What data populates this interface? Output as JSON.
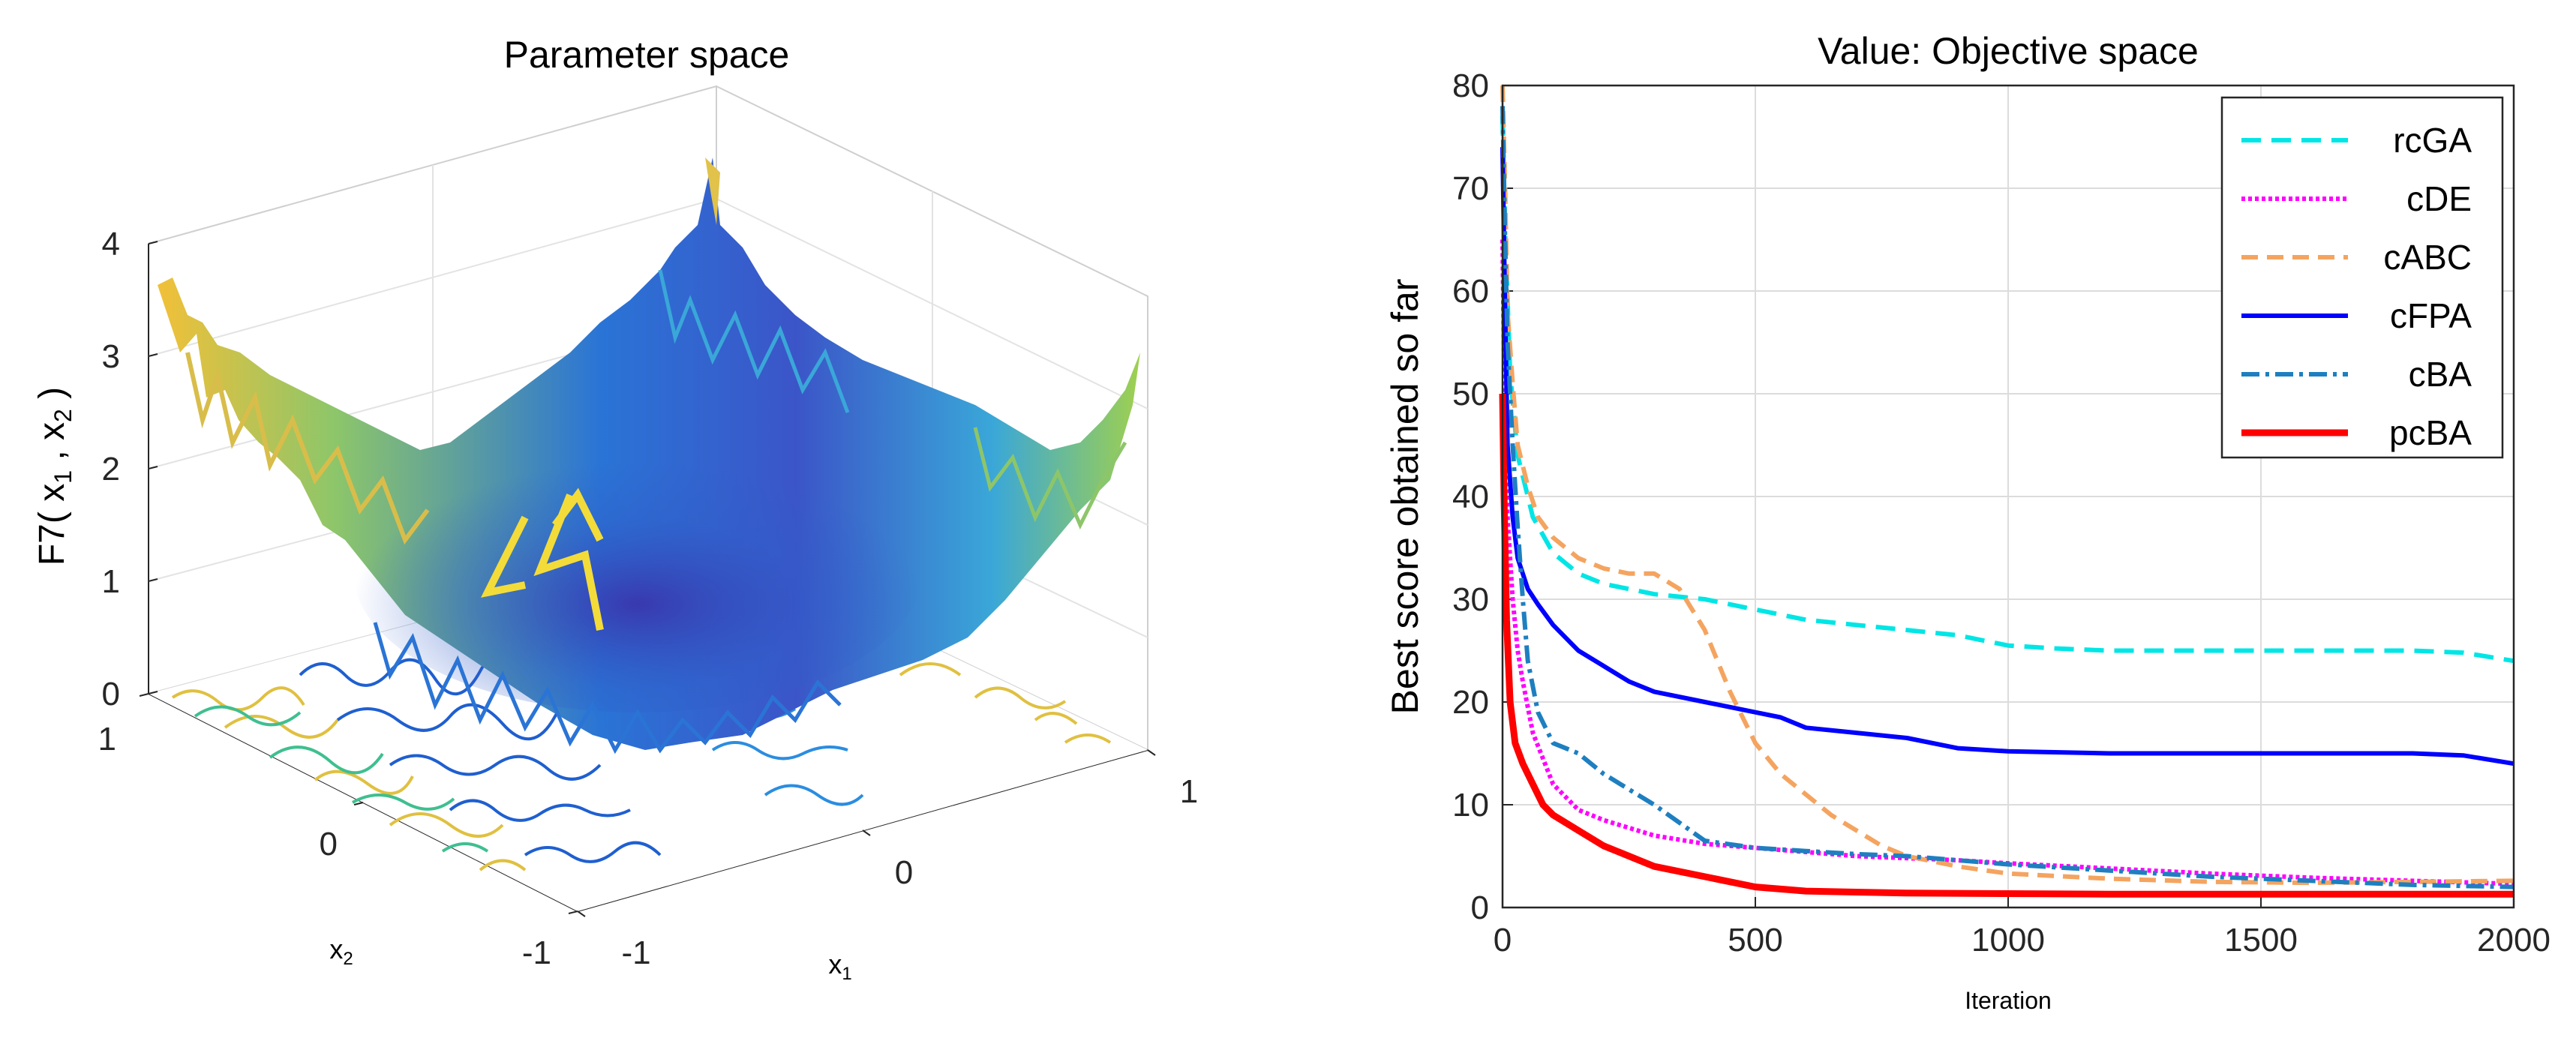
{
  "left_panel": {
    "title": "Parameter space",
    "title_color": "#ff0000",
    "zlabel_main": "F7( x",
    "zlabel_sub1": "1",
    "zlabel_comma": " , x",
    "zlabel_sub2": "2",
    "zlabel_end": " )",
    "xlabel_main": "x",
    "xlabel_sub": "1",
    "ylabel_main": "x",
    "ylabel_sub": "2",
    "z_ticks": [
      "0",
      "1",
      "2",
      "3",
      "4"
    ],
    "x_ticks": [
      "-1",
      "0",
      "1"
    ],
    "y_ticks": [
      "-1",
      "0",
      "1"
    ]
  },
  "chart_data": [
    {
      "type": "line",
      "title": "Value: Objective space",
      "title_color": "#0000ff",
      "xlabel": "Iteration",
      "ylabel": "Best score obtained so far",
      "xlim": [
        0,
        2000
      ],
      "ylim": [
        0,
        80
      ],
      "x_ticks": [
        "0",
        "500",
        "1000",
        "1500",
        "2000"
      ],
      "y_ticks": [
        "0",
        "10",
        "20",
        "30",
        "40",
        "50",
        "60",
        "70",
        "80"
      ],
      "x_tick_values": [
        0,
        500,
        1000,
        1500,
        2000
      ],
      "y_tick_values": [
        0,
        10,
        20,
        30,
        40,
        50,
        60,
        70,
        80
      ],
      "grid": true,
      "legend_position": "top-right",
      "series": [
        {
          "name": "rcGA",
          "color": "#00e5e5",
          "dash": "26,14",
          "width": 6,
          "x": [
            0,
            5,
            15,
            30,
            60,
            100,
            150,
            200,
            250,
            300,
            400,
            500,
            600,
            700,
            800,
            900,
            1000,
            1100,
            1200,
            1300,
            1400,
            1500,
            1600,
            1700,
            1800,
            1900,
            2000
          ],
          "y": [
            77,
            66,
            52,
            44,
            38,
            34.5,
            32.5,
            31.5,
            31,
            30.5,
            30,
            29,
            28,
            27.5,
            27,
            26.5,
            25.5,
            25.2,
            25,
            25,
            25,
            25,
            25,
            25,
            25,
            24.8,
            24
          ]
        },
        {
          "name": "cDE",
          "color": "#ff00ff",
          "dash": "5,4",
          "width": 6,
          "x": [
            0,
            5,
            10,
            20,
            30,
            40,
            60,
            80,
            100,
            150,
            200,
            300,
            400,
            500,
            600,
            700,
            800,
            900,
            1000,
            1200,
            1400,
            1600,
            1800,
            2000
          ],
          "y": [
            65,
            45,
            38,
            30,
            25,
            22,
            17,
            14.5,
            12,
            9.5,
            8.5,
            7,
            6.2,
            5.8,
            5.4,
            5,
            4.8,
            4.6,
            4.3,
            3.8,
            3.3,
            2.9,
            2.6,
            2.3
          ]
        },
        {
          "name": "cABC",
          "color": "#f4a460",
          "dash": "22,12",
          "width": 6,
          "x": [
            0,
            5,
            10,
            20,
            30,
            50,
            70,
            100,
            150,
            200,
            250,
            300,
            350,
            400,
            450,
            500,
            550,
            600,
            650,
            700,
            750,
            800,
            900,
            1000,
            1200,
            1400,
            1600,
            1800,
            2000
          ],
          "y": [
            80,
            70,
            58,
            51,
            45,
            41,
            38,
            36,
            34,
            33,
            32.5,
            32.5,
            31,
            27,
            21,
            16,
            13,
            11,
            9,
            7.5,
            6,
            5,
            4,
            3.3,
            2.8,
            2.5,
            2.4,
            2.5,
            2.6
          ]
        },
        {
          "name": "cFPA",
          "color": "#0000ff",
          "dash": "",
          "width": 6,
          "x": [
            0,
            5,
            10,
            20,
            30,
            50,
            70,
            100,
            150,
            200,
            250,
            300,
            400,
            500,
            550,
            600,
            700,
            800,
            900,
            1000,
            1200,
            1400,
            1600,
            1800,
            1900,
            2000
          ],
          "y": [
            74,
            58,
            45,
            38,
            34,
            31,
            29.5,
            27.5,
            25,
            23.5,
            22,
            21,
            20,
            19,
            18.5,
            17.5,
            17,
            16.5,
            15.5,
            15.2,
            15,
            15,
            15,
            15,
            14.8,
            14
          ]
        },
        {
          "name": "cBA",
          "color": "#1e7fc0",
          "dash": "24,8,5,8",
          "width": 6,
          "x": [
            0,
            5,
            10,
            20,
            30,
            40,
            50,
            70,
            100,
            150,
            200,
            300,
            400,
            500,
            600,
            700,
            800,
            900,
            1000,
            1200,
            1400,
            1600,
            1800,
            2000
          ],
          "y": [
            78,
            65,
            55,
            45,
            37,
            30,
            24,
            19,
            16,
            15,
            13,
            10,
            6.5,
            5.8,
            5.5,
            5.2,
            5,
            4.6,
            4.2,
            3.6,
            3,
            2.6,
            2.2,
            2
          ]
        },
        {
          "name": "pcBA",
          "color": "#ff0000",
          "dash": "",
          "width": 9,
          "x": [
            0,
            3,
            8,
            15,
            25,
            40,
            60,
            80,
            100,
            150,
            200,
            300,
            400,
            500,
            600,
            700,
            800,
            1000,
            1200,
            1400,
            1600,
            1800,
            2000
          ],
          "y": [
            50,
            40,
            28,
            20,
            16,
            14,
            12,
            10,
            9,
            7.5,
            6,
            4,
            3,
            2,
            1.6,
            1.5,
            1.4,
            1.35,
            1.3,
            1.3,
            1.3,
            1.3,
            1.3
          ]
        }
      ]
    }
  ]
}
